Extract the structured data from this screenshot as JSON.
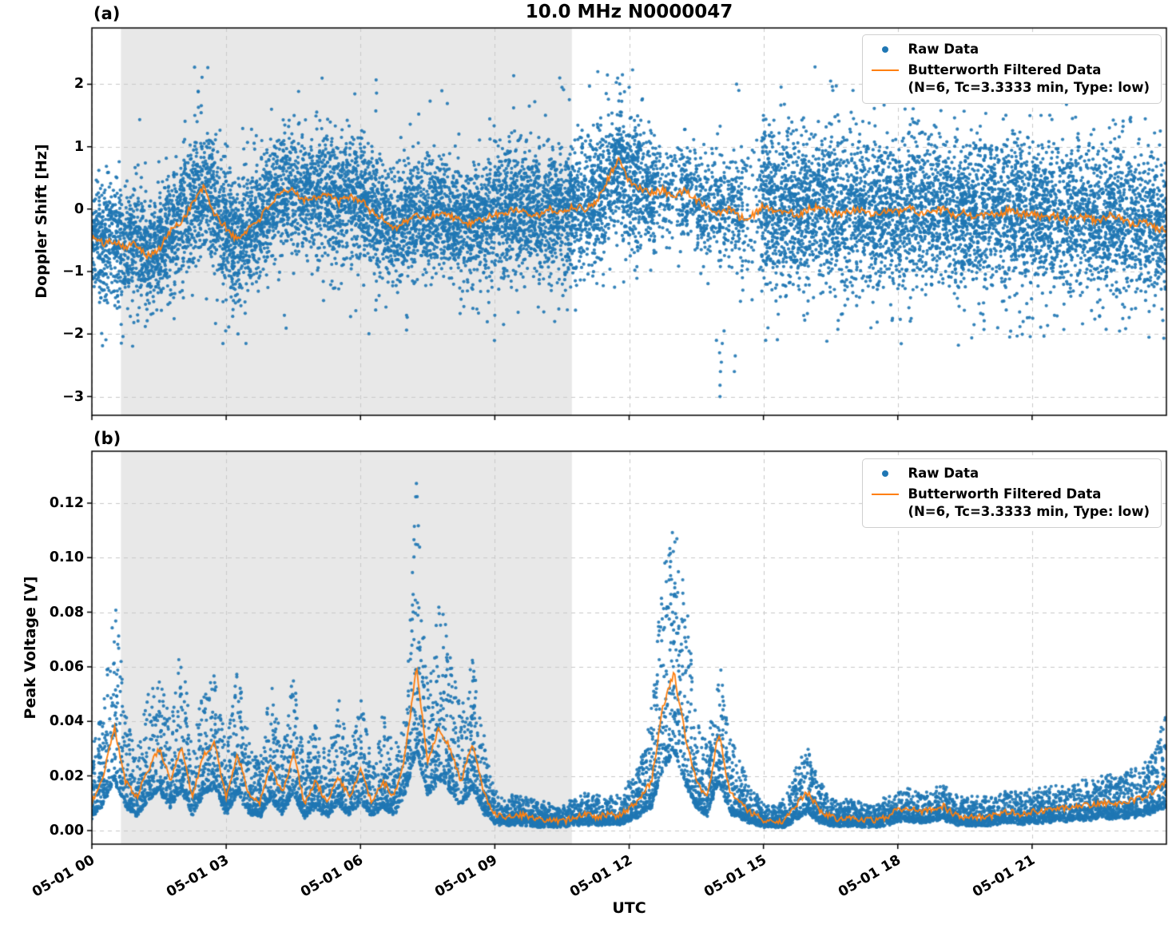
{
  "title": "10.0 MHz N0000047",
  "xlabel": "UTC",
  "panels": {
    "a": {
      "letter": "(a)",
      "ylabel": "Doppler Shift [Hz]"
    },
    "b": {
      "letter": "(b)",
      "ylabel": "Peak Voltage [V]"
    }
  },
  "legend": {
    "raw_label": "Raw Data",
    "filtered_label": "Butterworth Filtered Data",
    "filtered_params": "(N=6, Tc=3.3333 min, Type: low)"
  },
  "colors": {
    "raw": "#1f77b4",
    "filtered": "#ff7f0e",
    "shading": "rgba(128,128,128,0.18)",
    "grid": "#c8c8c8",
    "spine": "#000000"
  },
  "chart_data": [
    {
      "panel": "(a)",
      "type": "scatter",
      "title": "10.0 MHz N0000047",
      "ylabel": "Doppler Shift [Hz]",
      "xlabel": "UTC",
      "x_unit": "hours since 05-01 00:00 UTC",
      "xlim": [
        0,
        24
      ],
      "ylim": [
        -3.3,
        2.9
      ],
      "xticks": [
        0,
        3,
        6,
        9,
        12,
        15,
        18,
        21
      ],
      "xtick_labels": [
        "05-01 00",
        "05-01 03",
        "05-01 06",
        "05-01 09",
        "05-01 12",
        "05-01 15",
        "05-01 18",
        "05-01 21"
      ],
      "yticks": [
        -3,
        -2,
        -1,
        0,
        1,
        2
      ],
      "ytick_labels": [
        "−3",
        "−2",
        "−1",
        "0",
        "1",
        "2"
      ],
      "shaded_region": [
        0.65,
        10.72
      ],
      "grid": "dashed",
      "legend_position": "upper right",
      "show_x_tick_labels": false,
      "series": [
        {
          "name": "Raw Data",
          "kind": "scatter",
          "color": "#1f77b4",
          "model": "gaussian",
          "n_points": 14000,
          "t_step": 0.25,
          "center_from": "filtered",
          "sigma_segments": [
            [
              0,
              2,
              0.45
            ],
            [
              2,
              3,
              0.52
            ],
            [
              3,
              6,
              0.48
            ],
            [
              6,
              9,
              0.45
            ],
            [
              9,
              12.3,
              0.52
            ],
            [
              12.3,
              14.5,
              0.4
            ],
            [
              14.5,
              24.01,
              0.58
            ]
          ],
          "density_segments": [
            [
              12.6,
              13.15,
              0.35
            ],
            [
              13.15,
              14.5,
              0.6
            ],
            [
              14.55,
              14.95,
              0.3
            ]
          ],
          "outliers": [
            [
              0.2,
              -1.42
            ],
            [
              0.35,
              -1.5
            ],
            [
              2.3,
              1.5
            ],
            [
              2.35,
              1.4
            ],
            [
              4.3,
              -1.7
            ],
            [
              7.3,
              1.52
            ],
            [
              8.6,
              -1.6
            ],
            [
              9.0,
              -1.7
            ],
            [
              10.45,
              2.1
            ],
            [
              10.5,
              1.95
            ],
            [
              11.3,
              2.2
            ],
            [
              11.85,
              2.15
            ],
            [
              12.0,
              1.95
            ],
            [
              13.95,
              -2.1
            ],
            [
              14.02,
              -2.3
            ],
            [
              14.03,
              -3.0
            ],
            [
              14.03,
              -2.82
            ],
            [
              14.04,
              -2.6
            ],
            [
              14.06,
              -2.45
            ],
            [
              14.08,
              -2.15
            ],
            [
              14.12,
              -1.95
            ],
            [
              14.35,
              -2.6
            ],
            [
              14.37,
              -2.35
            ],
            [
              14.4,
              2.0
            ],
            [
              14.45,
              1.9
            ],
            [
              15.0,
              1.5
            ],
            [
              15.05,
              -2.1
            ],
            [
              15.1,
              -1.9
            ],
            [
              16.5,
              2.05
            ],
            [
              16.55,
              1.9
            ],
            [
              17.0,
              1.9
            ],
            [
              17.4,
              -1.9
            ],
            [
              18.0,
              1.85
            ],
            [
              18.3,
              -1.75
            ],
            [
              19.1,
              2.2
            ],
            [
              19.15,
              1.95
            ],
            [
              20.3,
              1.9
            ],
            [
              20.8,
              -1.8
            ],
            [
              21.2,
              1.5
            ],
            [
              21.5,
              -1.7
            ],
            [
              21.9,
              1.45
            ],
            [
              23.2,
              1.4
            ],
            [
              23.9,
              -1.6
            ]
          ]
        },
        {
          "name": "Butterworth Filtered Data (N=6, Tc=3.3333 min, Type: low)",
          "kind": "line",
          "color": "#ff7f0e",
          "t_start": 0,
          "t_step": 0.25,
          "values": [
            -0.45,
            -0.55,
            -0.5,
            -0.6,
            -0.55,
            -0.75,
            -0.65,
            -0.35,
            -0.2,
            0.1,
            0.35,
            -0.1,
            -0.3,
            -0.5,
            -0.3,
            -0.15,
            0.1,
            0.25,
            0.3,
            0.15,
            0.2,
            0.25,
            0.1,
            0.2,
            0.15,
            -0.05,
            -0.15,
            -0.3,
            -0.2,
            -0.1,
            -0.15,
            -0.05,
            -0.1,
            -0.2,
            -0.25,
            -0.15,
            -0.1,
            -0.05,
            0.0,
            -0.05,
            -0.1,
            0.0,
            -0.05,
            0.05,
            0.0,
            0.1,
            0.45,
            0.8,
            0.45,
            0.35,
            0.25,
            0.3,
            0.2,
            0.3,
            0.15,
            0.05,
            -0.05,
            0.0,
            -0.15,
            -0.1,
            0.05,
            -0.05,
            0.0,
            -0.1,
            0.0,
            0.05,
            -0.05,
            -0.1,
            0.0,
            -0.05,
            -0.1,
            0.0,
            -0.05,
            0.05,
            -0.1,
            -0.05,
            0.0,
            -0.1,
            -0.05,
            -0.15,
            -0.05,
            -0.1,
            0.0,
            -0.1,
            -0.05,
            -0.15,
            -0.1,
            -0.2,
            -0.1,
            -0.15,
            -0.2,
            -0.1,
            -0.15,
            -0.25,
            -0.2,
            -0.3,
            -0.35
          ],
          "line_noise_amp": 0.06
        }
      ]
    },
    {
      "panel": "(b)",
      "type": "scatter",
      "ylabel": "Peak Voltage [V]",
      "xlabel": "UTC",
      "x_unit": "hours since 05-01 00:00 UTC",
      "xlim": [
        0,
        24
      ],
      "ylim": [
        -0.005,
        0.139
      ],
      "xticks": [
        0,
        3,
        6,
        9,
        12,
        15,
        18,
        21
      ],
      "xtick_labels": [
        "05-01 00",
        "05-01 03",
        "05-01 06",
        "05-01 09",
        "05-01 12",
        "05-01 15",
        "05-01 18",
        "05-01 21"
      ],
      "yticks": [
        0.0,
        0.02,
        0.04,
        0.06,
        0.08,
        0.1,
        0.12
      ],
      "ytick_labels": [
        "0.00",
        "0.02",
        "0.04",
        "0.06",
        "0.08",
        "0.10",
        "0.12"
      ],
      "shaded_region": [
        0.65,
        10.72
      ],
      "grid": "dashed",
      "legend_position": "upper right",
      "show_x_tick_labels": true,
      "series": [
        {
          "name": "Raw Data",
          "kind": "scatter",
          "color": "#1f77b4",
          "model": "envelope",
          "n_points": 9500,
          "t_step": 0.25,
          "lower_scale": 0.5,
          "lower_min": 0.002,
          "bias": 2.4,
          "upper": [
            0.03,
            0.045,
            0.089,
            0.045,
            0.03,
            0.05,
            0.058,
            0.04,
            0.07,
            0.03,
            0.055,
            0.06,
            0.03,
            0.06,
            0.035,
            0.025,
            0.055,
            0.03,
            0.058,
            0.025,
            0.045,
            0.025,
            0.05,
            0.03,
            0.05,
            0.025,
            0.045,
            0.03,
            0.04,
            0.131,
            0.055,
            0.089,
            0.07,
            0.045,
            0.065,
            0.035,
            0.014,
            0.012,
            0.013,
            0.012,
            0.01,
            0.01,
            0.008,
            0.012,
            0.013,
            0.012,
            0.013,
            0.012,
            0.018,
            0.025,
            0.045,
            0.095,
            0.116,
            0.09,
            0.045,
            0.03,
            0.065,
            0.035,
            0.025,
            0.015,
            0.01,
            0.008,
            0.012,
            0.025,
            0.03,
            0.018,
            0.012,
            0.01,
            0.012,
            0.01,
            0.01,
            0.012,
            0.015,
            0.015,
            0.014,
            0.015,
            0.017,
            0.013,
            0.012,
            0.012,
            0.012,
            0.013,
            0.015,
            0.014,
            0.015,
            0.015,
            0.016,
            0.016,
            0.018,
            0.018,
            0.02,
            0.02,
            0.021,
            0.022,
            0.024,
            0.03,
            0.045
          ]
        },
        {
          "name": "Butterworth Filtered Data (N=6, Tc=3.3333 min, Type: low)",
          "kind": "line",
          "color": "#ff7f0e",
          "t_start": 0,
          "t_step": 0.25,
          "values": [
            0.01,
            0.02,
            0.038,
            0.018,
            0.012,
            0.022,
            0.03,
            0.018,
            0.03,
            0.012,
            0.028,
            0.032,
            0.012,
            0.028,
            0.014,
            0.01,
            0.024,
            0.013,
            0.028,
            0.01,
            0.018,
            0.01,
            0.02,
            0.012,
            0.022,
            0.01,
            0.018,
            0.012,
            0.028,
            0.06,
            0.025,
            0.038,
            0.03,
            0.018,
            0.032,
            0.014,
            0.006,
            0.005,
            0.006,
            0.005,
            0.004,
            0.004,
            0.003,
            0.005,
            0.006,
            0.005,
            0.006,
            0.005,
            0.008,
            0.012,
            0.018,
            0.045,
            0.058,
            0.035,
            0.018,
            0.012,
            0.036,
            0.014,
            0.01,
            0.006,
            0.004,
            0.003,
            0.004,
            0.01,
            0.014,
            0.007,
            0.005,
            0.004,
            0.005,
            0.004,
            0.004,
            0.005,
            0.008,
            0.008,
            0.007,
            0.008,
            0.009,
            0.006,
            0.005,
            0.005,
            0.005,
            0.006,
            0.007,
            0.006,
            0.007,
            0.007,
            0.008,
            0.008,
            0.009,
            0.009,
            0.01,
            0.01,
            0.01,
            0.011,
            0.012,
            0.015,
            0.018
          ],
          "line_noise_amp": 0.0012
        }
      ]
    }
  ]
}
